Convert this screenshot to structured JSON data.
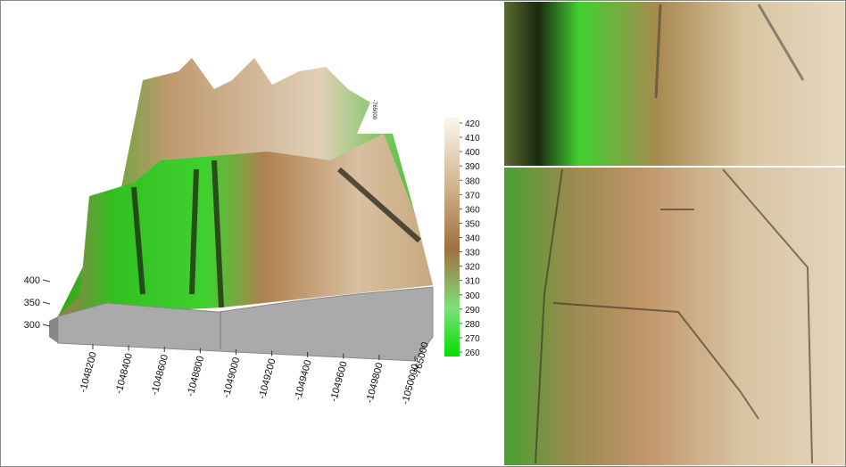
{
  "terrain": {
    "z_ticks": [
      400,
      350,
      300
    ],
    "x_ticks": [
      -1048200,
      -1048400,
      -1048600,
      -1048800,
      -1049000,
      -1049200,
      -1049400,
      -1049600,
      -1049800,
      -1050000
    ],
    "y_tick": -765000,
    "top_label": -765000
  },
  "colorbar": {
    "ticks": [
      420,
      410,
      400,
      390,
      380,
      370,
      360,
      350,
      340,
      330,
      320,
      310,
      300,
      290,
      280,
      270,
      260
    ]
  }
}
